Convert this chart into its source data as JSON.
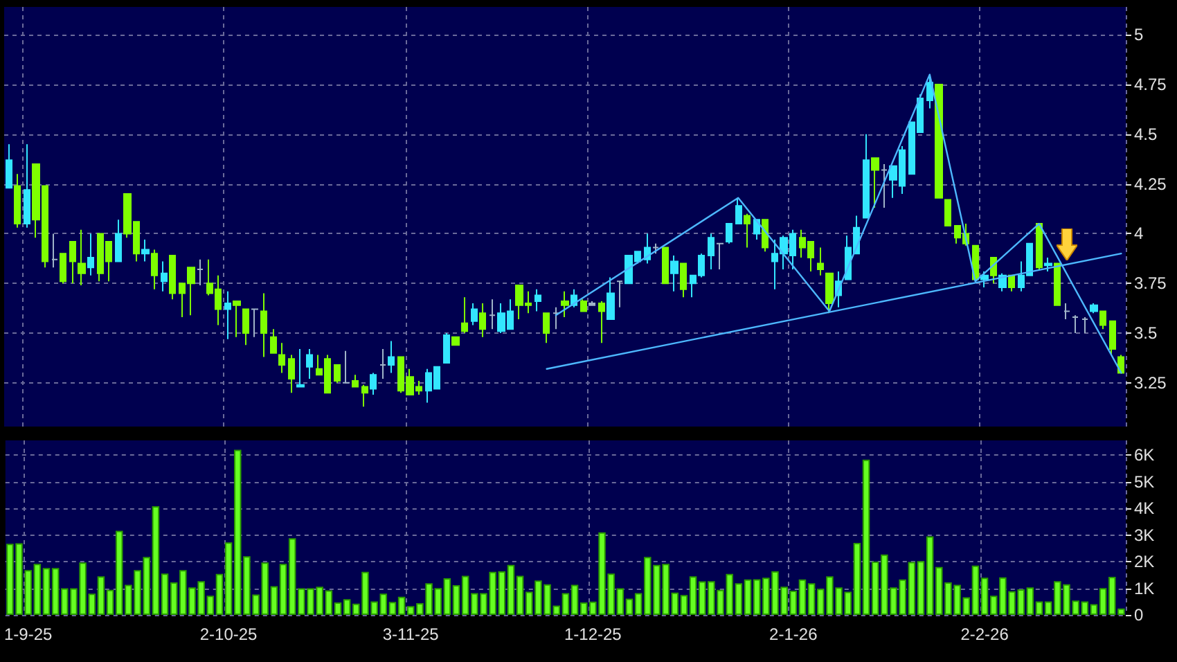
{
  "chart_data": [
    {
      "type": "candlestick",
      "categories": [
        null,
        null,
        null,
        null,
        null,
        null,
        null,
        null,
        null,
        null,
        null,
        null,
        null,
        null,
        null,
        null,
        null,
        null,
        null,
        null,
        null,
        null,
        null,
        null,
        null,
        null,
        null,
        null,
        null,
        null,
        null,
        null,
        null,
        null,
        null,
        null,
        null,
        null,
        null,
        null,
        null,
        null,
        null,
        null,
        null,
        null,
        null,
        null,
        null,
        null,
        null,
        null,
        null,
        null,
        null,
        null,
        null,
        null,
        null,
        null,
        null,
        null,
        null,
        null,
        null,
        null,
        null,
        null,
        null,
        null,
        null,
        null,
        null,
        null,
        null,
        null,
        null,
        null,
        null,
        null,
        null,
        null,
        null,
        null,
        null,
        null,
        null,
        null,
        null,
        null,
        null,
        null,
        null,
        null,
        null,
        null,
        null,
        null,
        null,
        null,
        null,
        null,
        null,
        null,
        null,
        null,
        null,
        null,
        null,
        null,
        null,
        null,
        null,
        null,
        null,
        null,
        null,
        null,
        null,
        null,
        null,
        null,
        null
      ],
      "ohlc": [
        [
          4.23,
          4.45,
          4.23,
          4.37
        ],
        [
          4.24,
          4.3,
          4.03,
          4.05
        ],
        [
          4.05,
          4.45,
          4.03,
          4.22
        ],
        [
          4.35,
          4.35,
          3.98,
          4.07
        ],
        [
          4.24,
          4.24,
          3.83,
          3.86
        ],
        [
          3.87,
          4.0,
          3.83,
          3.87
        ],
        [
          3.9,
          3.9,
          3.75,
          3.76
        ],
        [
          3.96,
          3.96,
          3.75,
          3.86
        ],
        [
          3.85,
          4.02,
          3.74,
          3.8
        ],
        [
          3.83,
          4.0,
          3.79,
          3.88
        ],
        [
          4.0,
          4.0,
          3.76,
          3.8
        ],
        [
          3.96,
          3.96,
          3.76,
          3.86
        ],
        [
          3.86,
          4.07,
          3.86,
          4.0
        ],
        [
          4.2,
          4.2,
          3.98,
          4.0
        ],
        [
          4.06,
          4.06,
          3.86,
          3.9
        ],
        [
          3.9,
          3.97,
          3.86,
          3.92
        ],
        [
          3.9,
          3.92,
          3.72,
          3.79
        ],
        [
          3.76,
          3.86,
          3.71,
          3.8
        ],
        [
          3.89,
          3.89,
          3.67,
          3.7
        ],
        [
          3.75,
          3.75,
          3.58,
          3.7
        ],
        [
          3.83,
          3.83,
          3.59,
          3.75
        ],
        [
          3.82,
          3.87,
          3.74,
          3.82
        ],
        [
          3.75,
          3.87,
          3.69,
          3.7
        ],
        [
          3.72,
          3.79,
          3.54,
          3.62
        ],
        [
          3.62,
          3.71,
          3.47,
          3.65
        ],
        [
          3.66,
          3.66,
          3.48,
          3.64
        ],
        [
          3.62,
          3.62,
          3.44,
          3.5
        ],
        [
          3.62,
          3.62,
          3.48,
          3.62
        ],
        [
          3.61,
          3.7,
          3.38,
          3.5
        ],
        [
          3.48,
          3.52,
          3.4,
          3.4
        ],
        [
          3.39,
          3.45,
          3.3,
          3.34
        ],
        [
          3.37,
          3.39,
          3.2,
          3.27
        ],
        [
          3.23,
          3.42,
          3.23,
          3.24
        ],
        [
          3.33,
          3.42,
          3.27,
          3.39
        ],
        [
          3.32,
          3.39,
          3.29,
          3.29
        ],
        [
          3.37,
          3.39,
          3.2,
          3.2
        ],
        [
          3.34,
          3.34,
          3.25,
          3.26
        ],
        [
          3.25,
          3.41,
          3.25,
          3.25
        ],
        [
          3.26,
          3.29,
          3.23,
          3.23
        ],
        [
          3.23,
          3.24,
          3.13,
          3.2
        ],
        [
          3.22,
          3.3,
          3.19,
          3.29
        ],
        [
          3.34,
          3.42,
          3.27,
          3.34
        ],
        [
          3.34,
          3.46,
          3.3,
          3.38
        ],
        [
          3.38,
          3.38,
          3.2,
          3.21
        ],
        [
          3.28,
          3.32,
          3.19,
          3.19
        ],
        [
          3.23,
          3.26,
          3.19,
          3.21
        ],
        [
          3.21,
          3.32,
          3.15,
          3.3
        ],
        [
          3.22,
          3.33,
          3.22,
          3.33
        ],
        [
          3.35,
          3.5,
          3.35,
          3.49
        ],
        [
          3.48,
          3.48,
          3.44,
          3.44
        ],
        [
          3.55,
          3.68,
          3.5,
          3.51
        ],
        [
          3.56,
          3.65,
          3.54,
          3.62
        ],
        [
          3.6,
          3.65,
          3.48,
          3.52
        ],
        [
          3.59,
          3.67,
          3.52,
          3.59
        ],
        [
          3.51,
          3.65,
          3.5,
          3.6
        ],
        [
          3.52,
          3.67,
          3.52,
          3.61
        ],
        [
          3.74,
          3.74,
          3.57,
          3.64
        ],
        [
          3.65,
          3.71,
          3.6,
          3.64
        ],
        [
          3.66,
          3.72,
          3.61,
          3.69
        ],
        [
          3.6,
          3.6,
          3.45,
          3.5
        ],
        [
          3.6,
          3.63,
          3.52,
          3.6
        ],
        [
          3.66,
          3.71,
          3.58,
          3.64
        ],
        [
          3.64,
          3.72,
          3.63,
          3.69
        ],
        [
          3.66,
          3.67,
          3.61,
          3.61
        ],
        [
          3.65,
          3.66,
          3.64,
          3.64
        ],
        [
          3.65,
          3.66,
          3.45,
          3.61
        ],
        [
          3.57,
          3.78,
          3.57,
          3.7
        ],
        [
          3.76,
          3.76,
          3.63,
          3.76
        ],
        [
          3.75,
          3.89,
          3.75,
          3.89
        ],
        [
          3.86,
          3.91,
          3.85,
          3.91
        ],
        [
          3.87,
          4.0,
          3.85,
          3.93
        ],
        [
          3.93,
          3.95,
          3.9,
          3.93
        ],
        [
          3.93,
          3.93,
          3.75,
          3.75
        ],
        [
          3.8,
          3.89,
          3.71,
          3.86
        ],
        [
          3.85,
          3.85,
          3.68,
          3.72
        ],
        [
          3.75,
          3.79,
          3.68,
          3.79
        ],
        [
          3.79,
          3.9,
          3.78,
          3.89
        ],
        [
          3.89,
          4.0,
          3.82,
          3.98
        ],
        [
          3.95,
          3.95,
          3.82,
          3.95
        ],
        [
          3.96,
          4.05,
          3.95,
          4.05
        ],
        [
          4.05,
          4.18,
          4.05,
          4.14
        ],
        [
          4.09,
          4.1,
          3.93,
          4.05
        ],
        [
          4.0,
          4.07,
          3.97,
          4.07
        ],
        [
          4.07,
          4.07,
          3.91,
          3.93
        ],
        [
          3.86,
          3.97,
          3.72,
          3.9
        ],
        [
          3.9,
          3.99,
          3.82,
          3.98
        ],
        [
          3.89,
          4.02,
          3.82,
          4.0
        ],
        [
          3.98,
          4.02,
          3.88,
          3.93
        ],
        [
          3.96,
          3.96,
          3.81,
          3.88
        ],
        [
          3.85,
          3.93,
          3.79,
          3.82
        ],
        [
          3.8,
          3.8,
          3.6,
          3.65
        ],
        [
          3.69,
          3.81,
          3.63,
          3.76
        ],
        [
          3.77,
          3.99,
          3.77,
          3.93
        ],
        [
          3.9,
          4.09,
          3.9,
          4.03
        ],
        [
          4.08,
          4.5,
          4.08,
          4.37
        ],
        [
          4.38,
          4.38,
          4.13,
          4.32
        ],
        [
          4.32,
          4.35,
          4.13,
          4.32
        ],
        [
          4.27,
          4.34,
          4.18,
          4.34
        ],
        [
          4.24,
          4.44,
          4.2,
          4.42
        ],
        [
          4.3,
          4.56,
          4.3,
          4.56
        ],
        [
          4.51,
          4.7,
          4.51,
          4.68
        ],
        [
          4.67,
          4.79,
          4.63,
          4.76
        ],
        [
          4.75,
          4.75,
          4.18,
          4.18
        ],
        [
          4.17,
          4.17,
          4.04,
          4.04
        ],
        [
          4.04,
          4.04,
          3.95,
          3.98
        ],
        [
          4.0,
          4.05,
          3.94,
          3.95
        ],
        [
          3.94,
          3.94,
          3.77,
          3.77
        ],
        [
          3.77,
          3.81,
          3.73,
          3.79
        ],
        [
          3.88,
          3.88,
          3.75,
          3.79
        ],
        [
          3.73,
          3.8,
          3.71,
          3.79
        ],
        [
          3.79,
          3.79,
          3.71,
          3.73
        ],
        [
          3.73,
          3.86,
          3.71,
          3.79
        ],
        [
          3.79,
          3.95,
          3.79,
          3.95
        ],
        [
          4.05,
          4.05,
          3.82,
          3.83
        ],
        [
          3.84,
          3.88,
          3.81,
          3.85
        ],
        [
          3.85,
          3.85,
          3.64,
          3.64
        ],
        [
          3.61,
          3.65,
          3.57,
          3.61
        ],
        [
          3.58,
          3.59,
          3.5,
          3.58
        ],
        [
          3.57,
          3.58,
          3.5,
          3.57
        ],
        [
          3.61,
          3.65,
          3.6,
          3.64
        ],
        [
          3.61,
          3.61,
          3.52,
          3.54
        ],
        [
          3.56,
          3.56,
          3.39,
          3.42
        ],
        [
          3.38,
          3.39,
          3.3,
          3.3
        ]
      ],
      "colors": [
        "#33e6ff",
        "#7fff00",
        "#33e6ff",
        "#7fff00",
        "#7fff00",
        "#a0b4c8",
        "#7fff00",
        "#7fff00",
        "#7fff00",
        "#33e6ff",
        "#7fff00",
        "#7fff00",
        "#33e6ff",
        "#7fff00",
        "#7fff00",
        "#33e6ff",
        "#7fff00",
        "#33e6ff",
        "#7fff00",
        "#7fff00",
        "#7fff00",
        "#a0b4c8",
        "#7fff00",
        "#7fff00",
        "#33e6ff",
        "#7fff00",
        "#7fff00",
        "#a0b4c8",
        "#7fff00",
        "#7fff00",
        "#7fff00",
        "#7fff00",
        "#33e6ff",
        "#33e6ff",
        "#7fff00",
        "#7fff00",
        "#7fff00",
        "#a0b4c8",
        "#7fff00",
        "#7fff00",
        "#33e6ff",
        "#a0b4c8",
        "#33e6ff",
        "#7fff00",
        "#7fff00",
        "#7fff00",
        "#33e6ff",
        "#33e6ff",
        "#33e6ff",
        "#7fff00",
        "#7fff00",
        "#33e6ff",
        "#7fff00",
        "#a0b4c8",
        "#33e6ff",
        "#33e6ff",
        "#7fff00",
        "#7fff00",
        "#33e6ff",
        "#7fff00",
        "#a0b4c8",
        "#7fff00",
        "#33e6ff",
        "#7fff00",
        "#a0b4c8",
        "#7fff00",
        "#33e6ff",
        "#a0b4c8",
        "#33e6ff",
        "#33e6ff",
        "#33e6ff",
        "#a0b4c8",
        "#7fff00",
        "#33e6ff",
        "#7fff00",
        "#33e6ff",
        "#33e6ff",
        "#33e6ff",
        "#a0b4c8",
        "#33e6ff",
        "#33e6ff",
        "#7fff00",
        "#33e6ff",
        "#7fff00",
        "#33e6ff",
        "#33e6ff",
        "#33e6ff",
        "#7fff00",
        "#7fff00",
        "#7fff00",
        "#7fff00",
        "#33e6ff",
        "#33e6ff",
        "#33e6ff",
        "#33e6ff",
        "#7fff00",
        "#a0b4c8",
        "#33e6ff",
        "#33e6ff",
        "#33e6ff",
        "#33e6ff",
        "#33e6ff",
        "#7fff00",
        "#7fff00",
        "#7fff00",
        "#7fff00",
        "#7fff00",
        "#33e6ff",
        "#7fff00",
        "#33e6ff",
        "#7fff00",
        "#33e6ff",
        "#33e6ff",
        "#7fff00",
        "#33e6ff",
        "#7fff00",
        "#a0b4c8",
        "#a0b4c8",
        "#a0b4c8",
        "#33e6ff",
        "#7fff00",
        "#7fff00",
        "#7fff00"
      ],
      "series": [
        {
          "type": "line",
          "color": "#4db8ff",
          "values": [
            null,
            null,
            null,
            null,
            null,
            null,
            null,
            null,
            null,
            null,
            null,
            null,
            null,
            null,
            null,
            null,
            null,
            null,
            null,
            null,
            null,
            null,
            null,
            null,
            null,
            null,
            null,
            null,
            null,
            null,
            null,
            null,
            null,
            null,
            null,
            null,
            null,
            null,
            null,
            null,
            null,
            null,
            null,
            null,
            null,
            null,
            null,
            null,
            null,
            null,
            null,
            null,
            null,
            null,
            null,
            null,
            null,
            null,
            null,
            null,
            3.59,
            null,
            null,
            null,
            null,
            null,
            null,
            null,
            null,
            null,
            null,
            null,
            null,
            null,
            null,
            null,
            null,
            null,
            null,
            null,
            4.18,
            null,
            null,
            null,
            null,
            null,
            null,
            null,
            null,
            null,
            3.61,
            null,
            null,
            null,
            null,
            null,
            null,
            null,
            null,
            null,
            null,
            4.8,
            null,
            null,
            null,
            null,
            3.76,
            null,
            null,
            null,
            null,
            null,
            null,
            4.05,
            null,
            null,
            null,
            null,
            null,
            null,
            null,
            null,
            3.3
          ]
        },
        {
          "type": "line",
          "color": "#4db8ff",
          "values": [
            null,
            null,
            null,
            null,
            null,
            null,
            null,
            null,
            null,
            null,
            null,
            null,
            null,
            null,
            null,
            null,
            null,
            null,
            null,
            null,
            null,
            null,
            null,
            null,
            null,
            null,
            null,
            null,
            null,
            null,
            null,
            null,
            null,
            null,
            null,
            null,
            null,
            null,
            null,
            null,
            null,
            null,
            null,
            null,
            null,
            null,
            null,
            null,
            null,
            null,
            null,
            null,
            null,
            null,
            null,
            null,
            null,
            null,
            null,
            3.32,
            null,
            null,
            null,
            null,
            null,
            null,
            null,
            null,
            null,
            null,
            null,
            null,
            null,
            null,
            null,
            null,
            null,
            null,
            null,
            null,
            null,
            null,
            null,
            null,
            null,
            null,
            null,
            null,
            null,
            null,
            null,
            null,
            null,
            null,
            null,
            null,
            null,
            null,
            null,
            null,
            null,
            null,
            null,
            null,
            null,
            null,
            null,
            null,
            null,
            null,
            null,
            null,
            null,
            null,
            null,
            null,
            null,
            null,
            null,
            null,
            null,
            null,
            3.9
          ]
        }
      ],
      "ylim": [
        3.03,
        5.14
      ],
      "yticks": [
        3.25,
        3.5,
        3.75,
        4,
        4.25,
        4.5,
        4.75,
        5
      ],
      "grid": true,
      "tick_labels": "y"
    },
    {
      "type": "bar",
      "categories": [
        null,
        null,
        "1-9-25",
        null,
        null,
        null,
        null,
        null,
        null,
        null,
        null,
        null,
        null,
        null,
        null,
        null,
        null,
        null,
        null,
        null,
        null,
        null,
        null,
        null,
        "2-10-25",
        null,
        null,
        null,
        null,
        null,
        null,
        null,
        null,
        null,
        null,
        null,
        null,
        null,
        null,
        null,
        null,
        null,
        null,
        null,
        "3-11-25",
        null,
        null,
        null,
        null,
        null,
        null,
        null,
        null,
        null,
        null,
        null,
        null,
        null,
        null,
        null,
        null,
        null,
        null,
        null,
        "1-12-25",
        null,
        null,
        null,
        null,
        null,
        null,
        null,
        null,
        null,
        null,
        null,
        null,
        null,
        null,
        null,
        null,
        null,
        null,
        null,
        null,
        null,
        "2-1-26",
        null,
        null,
        null,
        null,
        null,
        null,
        null,
        null,
        null,
        null,
        null,
        null,
        null,
        null,
        null,
        null,
        null,
        null,
        null,
        null,
        "2-2-26",
        null,
        null,
        null,
        null,
        null,
        null,
        null,
        null,
        null,
        null,
        null,
        null,
        null,
        null,
        null
      ],
      "color": "#66ff22",
      "values": [
        2670,
        2690,
        1680,
        1920,
        1760,
        1760,
        1000,
        1000,
        1970,
        800,
        1450,
        940,
        3160,
        1130,
        1680,
        2180,
        4080,
        1550,
        1220,
        1680,
        1030,
        1270,
        720,
        1540,
        2720,
        6200,
        2200,
        770,
        1970,
        1080,
        1920,
        2880,
        1000,
        1000,
        1060,
        920,
        470,
        590,
        420,
        1620,
        510,
        800,
        490,
        680,
        330,
        440,
        1190,
        1010,
        1380,
        1120,
        1470,
        820,
        820,
        1620,
        1640,
        1880,
        1470,
        870,
        1290,
        1150,
        350,
        820,
        1130,
        470,
        500,
        3100,
        1550,
        1000,
        610,
        820,
        2180,
        1880,
        1920,
        840,
        750,
        1450,
        1260,
        1270,
        940,
        1540,
        1190,
        1330,
        1340,
        1400,
        1640,
        1060,
        910,
        1330,
        1190,
        980,
        1450,
        1030,
        870,
        2700,
        5830,
        2000,
        2270,
        1030,
        1330,
        1990,
        2020,
        2950,
        1800,
        1220,
        1130,
        660,
        1850,
        1400,
        720,
        1410,
        890,
        960,
        1030,
        510,
        510,
        1270,
        1150,
        540,
        510,
        400,
        1010,
        1430,
        240
      ],
      "ylim": [
        0,
        6550
      ],
      "yticks": [
        0,
        {
          "value": 1000,
          "label": "1K"
        },
        {
          "value": 2000,
          "label": "2K"
        },
        {
          "value": 3000,
          "label": "3K"
        },
        {
          "value": 4000,
          "label": "4K"
        },
        {
          "value": 5000,
          "label": "5K"
        },
        {
          "value": 6000,
          "label": "6K"
        }
      ],
      "grid": true
    }
  ]
}
